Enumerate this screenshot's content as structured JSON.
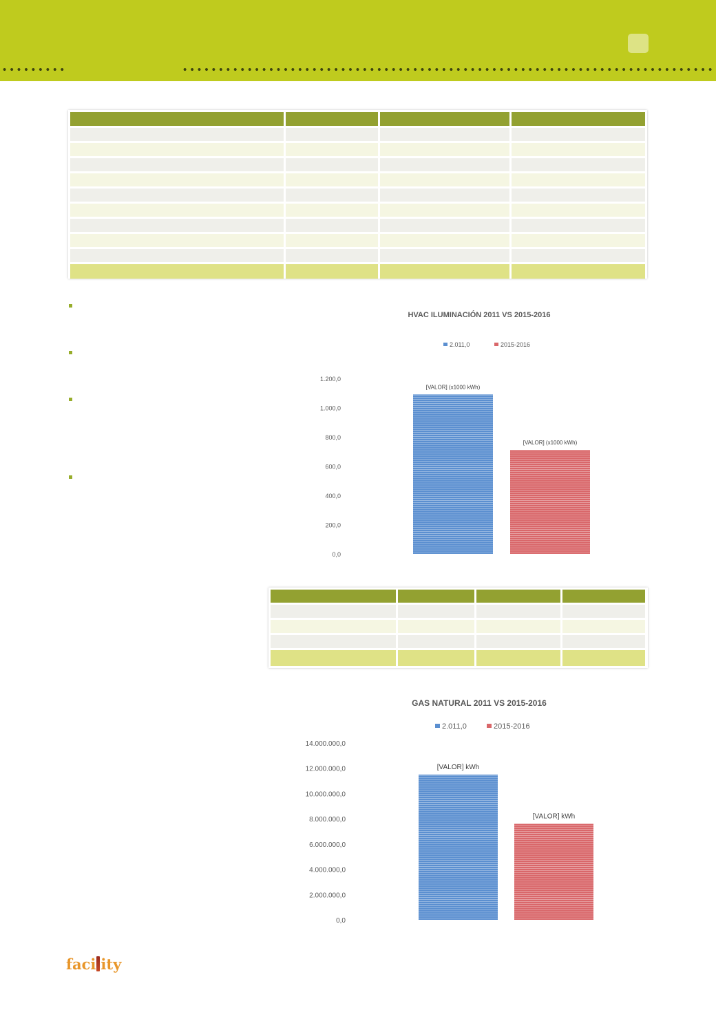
{
  "header": {
    "page_tab_label": ""
  },
  "brand": {
    "logo_left": "faci",
    "logo_right": "ity"
  },
  "colors": {
    "header_green": "#bfcb1e",
    "table_header": "#93a131",
    "series_2011": "#5b8fd0",
    "series_2015": "#d9676a"
  },
  "chart_data": [
    {
      "type": "bar",
      "title": "HVAC ILUMINACIÓN 2011 VS 2015-2016",
      "xlabel": "",
      "ylabel": "",
      "ylim": [
        0,
        1200
      ],
      "yticks": [
        "1.200,0",
        "1.000,0",
        "800,0",
        "600,0",
        "400,0",
        "200,0",
        "0,0"
      ],
      "ytick_values": [
        1200,
        1000,
        800,
        600,
        400,
        200,
        0
      ],
      "legend_position": "top",
      "series": [
        {
          "name": "2.011,0",
          "value": 1090,
          "color": "#5b8fd0",
          "label": "[VALOR] (x1000 kWh)"
        },
        {
          "name": "2015-2016",
          "value": 710,
          "color": "#d9676a",
          "label": "[VALOR] (x1000 kWh)"
        }
      ]
    },
    {
      "type": "bar",
      "title": "GAS NATURAL 2011 VS 2015-2016",
      "xlabel": "",
      "ylabel": "",
      "ylim": [
        0,
        14000000
      ],
      "yticks": [
        "14.000.000,0",
        "12.000.000,0",
        "10.000.000,0",
        "8.000.000,0",
        "6.000.000,0",
        "4.000.000,0",
        "2.000.000,0",
        "0,0"
      ],
      "ytick_values": [
        14000000,
        12000000,
        10000000,
        8000000,
        6000000,
        4000000,
        2000000,
        0
      ],
      "legend_position": "top",
      "series": [
        {
          "name": "2.011,0",
          "value": 11500000,
          "color": "#5b8fd0",
          "label": "[VALOR] kWh"
        },
        {
          "name": "2015-2016",
          "value": 7600000,
          "color": "#d9676a",
          "label": "[VALOR] kWh"
        }
      ]
    }
  ]
}
